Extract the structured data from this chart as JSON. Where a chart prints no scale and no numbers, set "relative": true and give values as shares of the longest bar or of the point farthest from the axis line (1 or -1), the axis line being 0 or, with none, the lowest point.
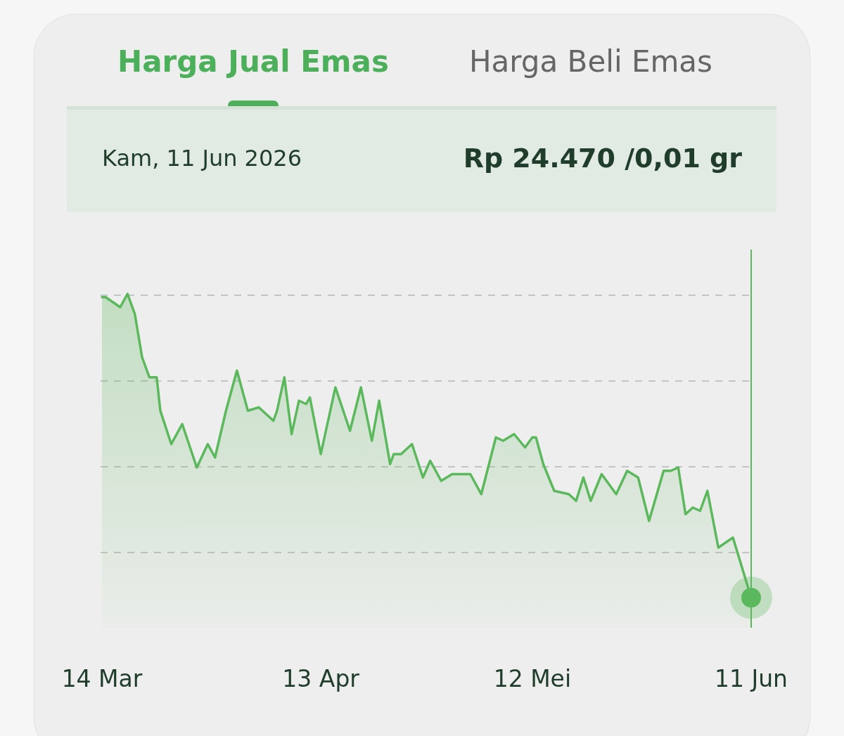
{
  "chart_data": {
    "type": "area",
    "title": "Harga Jual Emas",
    "subtitle": "Kam, 11 Jun 2026",
    "annotations": [
      "Harga Beli Emas",
      "Rp 24.470 /0,01 gr"
    ],
    "relative": true,
    "grid": "y",
    "line_style": "solid",
    "marker": "none",
    "x": [
      "2026-03-14",
      "2026-03-14T12:00",
      "2026-03-16T12:00",
      "2026-03-17T12:00",
      "2026-03-18T12:00",
      "2026-03-19T12:00",
      "2026-03-20T12:00",
      "2026-03-21",
      "2026-03-21T12:00",
      "2026-03-22",
      "2026-03-23T12:00",
      "2026-03-25",
      "2026-03-27",
      "2026-03-28T12:00",
      "2026-03-29T12:00",
      "2026-03-31",
      "2026-04-01T12:00",
      "2026-04-03",
      "2026-04-04T12:00",
      "2026-04-06T12:00",
      "2026-04-07",
      "2026-04-08",
      "2026-04-09",
      "2026-04-10",
      "2026-04-11",
      "2026-04-11T12:00",
      "2026-04-13",
      "2026-04-15",
      "2026-04-17",
      "2026-04-18T12:00",
      "2026-04-20",
      "2026-04-21",
      "2026-04-22T12:00",
      "2026-04-23",
      "2026-04-24",
      "2026-04-25T12:00",
      "2026-04-27",
      "2026-04-28",
      "2026-04-29T12:00",
      "2026-05-01",
      "2026-05-03T12:00",
      "2026-05-05",
      "2026-05-07",
      "2026-05-08",
      "2026-05-09T12:00",
      "2026-05-11",
      "2026-05-12",
      "2026-05-12T12:00",
      "2026-05-13T12:00",
      "2026-05-15",
      "2026-05-17",
      "2026-05-18",
      "2026-05-19",
      "2026-05-20",
      "2026-05-21T12:00",
      "2026-05-23T12:00",
      "2026-05-25",
      "2026-05-26T12:00",
      "2026-05-28",
      "2026-05-30",
      "2026-05-31",
      "2026-06-01",
      "2026-06-02",
      "2026-06-03",
      "2026-06-04",
      "2026-06-05",
      "2026-06-06T12:00",
      "2026-06-08T12:00",
      "2026-06-11"
    ],
    "series": [
      {
        "color": "#5cb85c",
        "values": [
          0.99,
          0.99,
          0.96,
          1.0,
          0.94,
          0.81,
          0.75,
          0.75,
          0.75,
          0.65,
          0.55,
          0.61,
          0.48,
          0.55,
          0.51,
          0.65,
          0.77,
          0.65,
          0.66,
          0.62,
          0.65,
          0.75,
          0.58,
          0.68,
          0.67,
          0.69,
          0.52,
          0.72,
          0.59,
          0.72,
          0.56,
          0.68,
          0.49,
          0.52,
          0.52,
          0.55,
          0.45,
          0.5,
          0.44,
          0.46,
          0.46,
          0.4,
          0.57,
          0.56,
          0.58,
          0.54,
          0.57,
          0.57,
          0.49,
          0.41,
          0.4,
          0.38,
          0.45,
          0.38,
          0.46,
          0.4,
          0.47,
          0.45,
          0.32,
          0.47,
          0.47,
          0.48,
          0.34,
          0.36,
          0.35,
          0.41,
          0.24,
          0.27,
          0.09
        ]
      }
    ],
    "xlim": [
      "2026-03-14",
      "2026-06-11"
    ],
    "xticks": [
      {
        "value": "2026-03-14",
        "label": "14 Mar"
      },
      {
        "value": "2026-04-13",
        "label": "13 Apr"
      },
      {
        "value": "2026-05-12",
        "label": "12 Mei"
      },
      {
        "value": "2026-06-11",
        "label": "11 Jun"
      }
    ],
    "ref_lines": [
      {
        "axis": "x",
        "value": "2026-06-11",
        "color": "#5cb85c"
      }
    ]
  }
}
